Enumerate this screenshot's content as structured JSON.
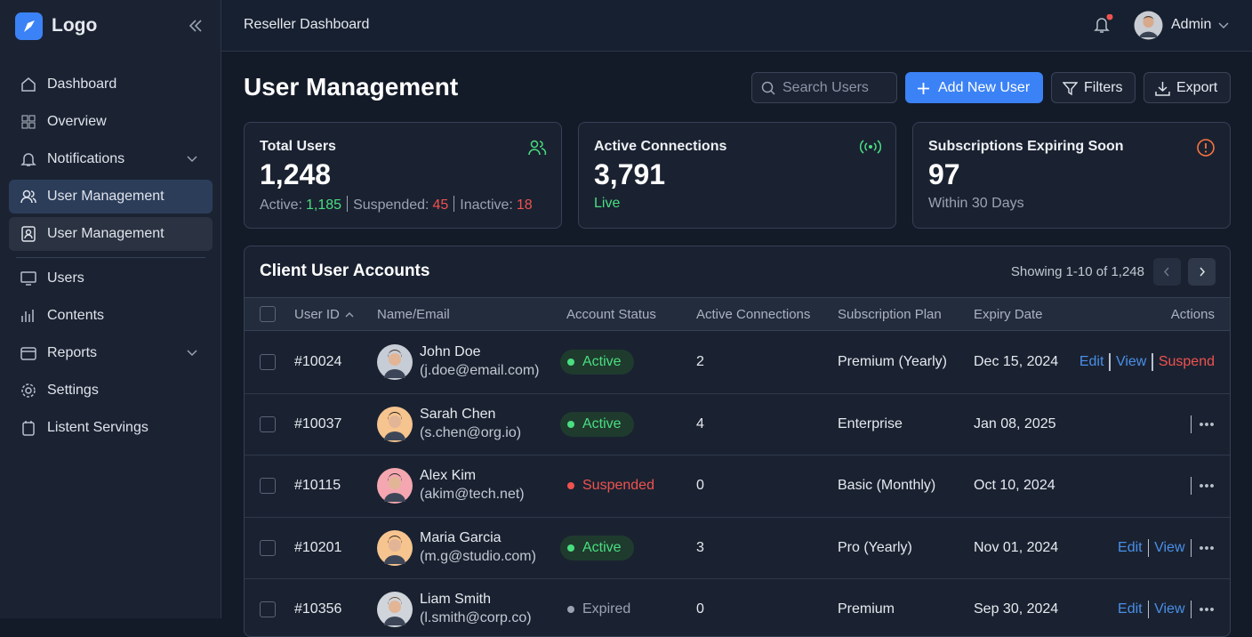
{
  "sidebar": {
    "logo": "Logo",
    "nav": [
      "Dashboard",
      "Overview",
      "Notifications",
      "User Management",
      "User Management",
      "Users",
      "Contents",
      "Reports",
      "Settings",
      "Listent Servings"
    ]
  },
  "header": {
    "title": "Reseller Dashboard",
    "user": "Admin"
  },
  "toolbar": {
    "title": "User Management",
    "search": "Search Users",
    "add": "Add New User",
    "filters": "Filters",
    "export": "Export"
  },
  "cards": [
    {
      "title": "Total Users",
      "value": "1,248",
      "details": [
        {
          "label": "Active:",
          "value": "1,185",
          "color": "#4ade80"
        },
        {
          "label": "Suspended:",
          "value": "45",
          "color": "#f0524f"
        },
        {
          "label": "Inactive:",
          "value": "18",
          "color": "#f0524f"
        }
      ]
    },
    {
      "title": "Active Connections",
      "value": "3,791",
      "note": "Live",
      "note_color": "#4ade80"
    },
    {
      "title": "Subscriptions Expiring Soon",
      "value": "97",
      "note": "Within 30 Days",
      "note_color": "#9aa3b2"
    }
  ],
  "table": {
    "title": "Client User Accounts",
    "range": "Showing 1-10 of 1,248",
    "columns": [
      "User ID",
      "Name/Email",
      "Account Status",
      "Active Connections",
      "Subscription Plan",
      "Expiry Date",
      "Actions"
    ],
    "rows": [
      {
        "id": "#10024",
        "name": "John Doe",
        "email": "(j.doe@email.com)",
        "status": {
          "label": "Active",
          "color": "#4ade80",
          "badge": true
        },
        "connections": "2",
        "plan": "Premium (Yearly)",
        "expiry": "Dec 15, 2024",
        "actions": [
          {
            "label": "Edit",
            "color": "#4a8fe8"
          },
          {
            "label": "View",
            "color": "#4a8fe8"
          },
          {
            "label": "Suspend",
            "color": "#f0524f"
          }
        ],
        "menu": false
      },
      {
        "id": "#10037",
        "name": "Sarah Chen",
        "email": "(s.chen@org.io)",
        "status": {
          "label": "Active",
          "color": "#4ade80",
          "badge": true
        },
        "connections": "4",
        "plan": "Enterprise",
        "expiry": "Jan 08, 2025",
        "actions": [],
        "menu": true
      },
      {
        "id": "#10115",
        "name": "Alex Kim",
        "email": "(akim@tech.net)",
        "status": {
          "label": "Suspended",
          "color": "#f0524f",
          "badge": false
        },
        "connections": "0",
        "plan": "Basic (Monthly)",
        "expiry": "Oct 10, 2024",
        "actions": [],
        "menu": true
      },
      {
        "id": "#10201",
        "name": "Maria Garcia",
        "email": "(m.g@studio.com)",
        "status": {
          "label": "Active",
          "color": "#4ade80",
          "badge": true
        },
        "connections": "3",
        "plan": "Pro (Yearly)",
        "expiry": "Nov 01, 2024",
        "actions": [
          {
            "label": "Edit",
            "color": "#4a8fe8"
          },
          {
            "label": "View",
            "color": "#4a8fe8"
          }
        ],
        "menu": true
      },
      {
        "id": "#10356",
        "name": "Liam Smith",
        "email": "(l.smith@corp.co)",
        "status": {
          "label": "Expired",
          "color": "#9aa3b2",
          "badge": false
        },
        "connections": "0",
        "plan": "Premium",
        "expiry": "Sep 30, 2024",
        "actions": [
          {
            "label": "Edit",
            "color": "#4a8fe8"
          },
          {
            "label": "View",
            "color": "#4a8fe8"
          }
        ],
        "menu": true
      }
    ]
  }
}
